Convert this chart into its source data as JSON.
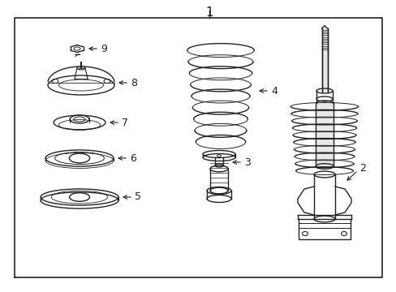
{
  "bg_color": "#ffffff",
  "line_color": "#222222",
  "label_color": "#111111",
  "title": "1",
  "figsize": [
    4.89,
    3.6
  ],
  "dpi": 100
}
